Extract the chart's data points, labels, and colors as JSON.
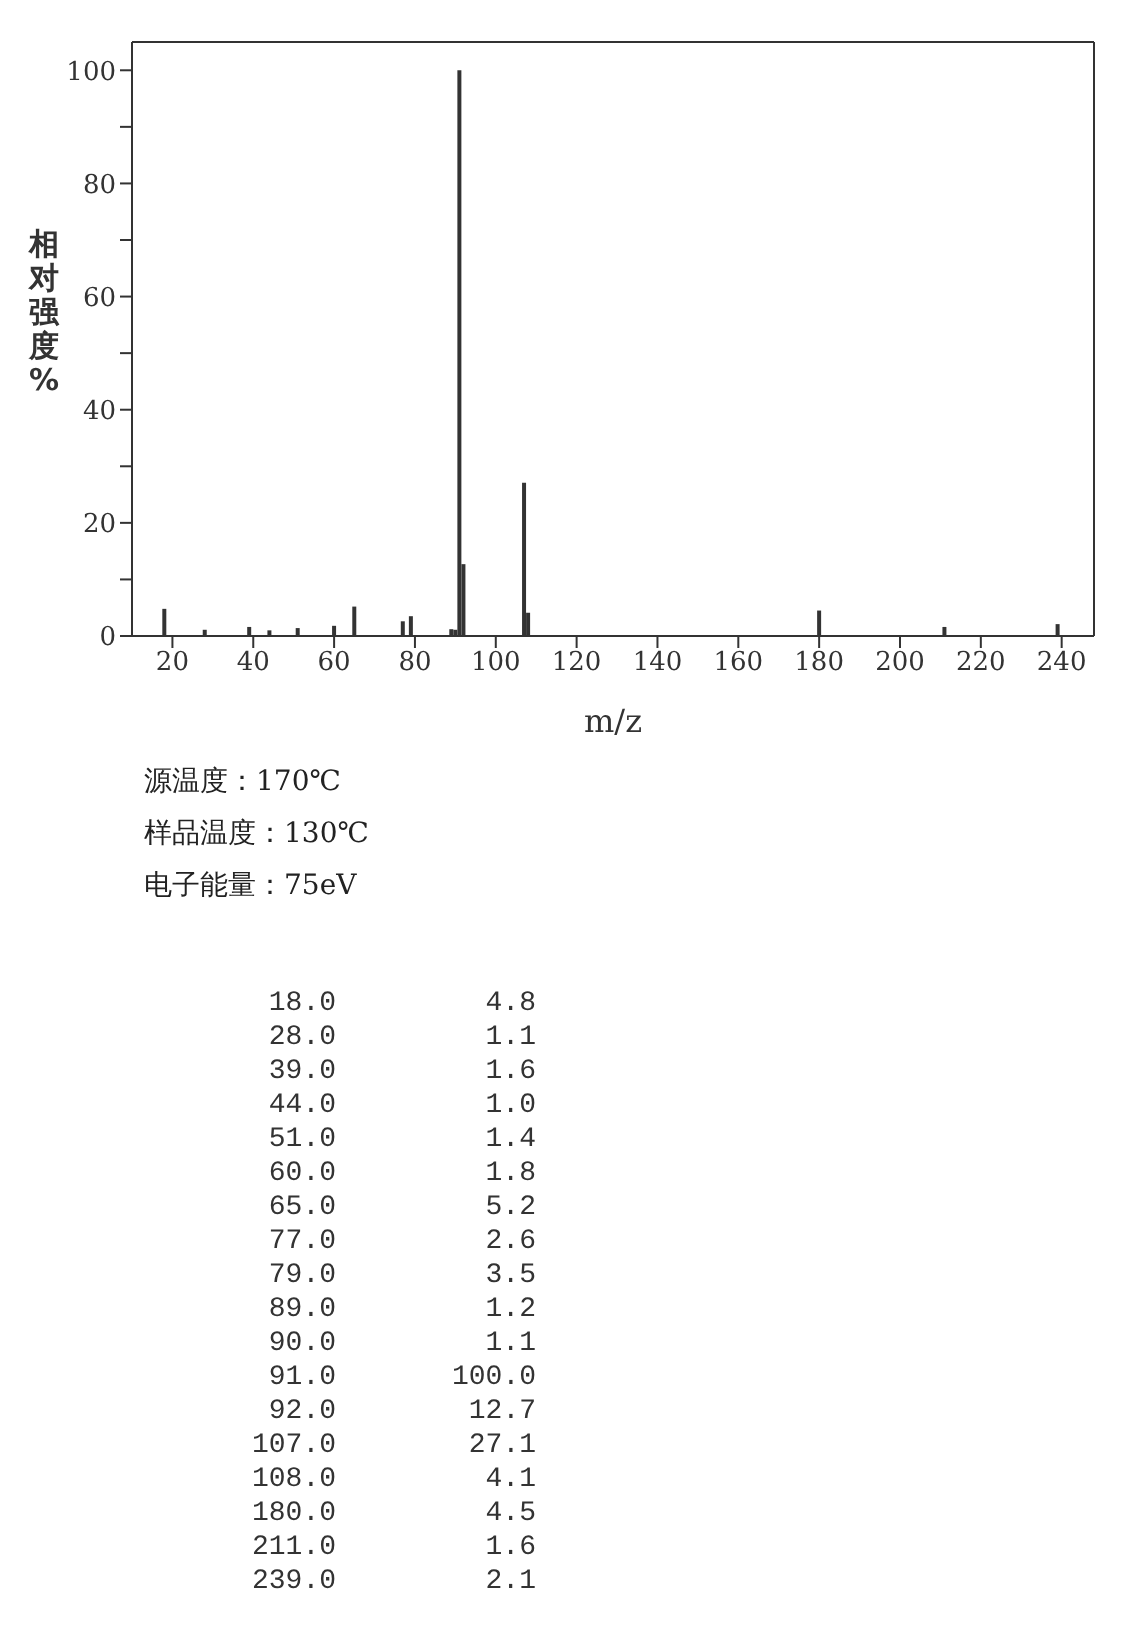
{
  "chart_data": [
    {
      "type": "bar",
      "xlabel": "m/z",
      "ylabel": "相对强度%",
      "x": [
        18,
        28,
        39,
        44,
        51,
        60,
        65,
        77,
        79,
        89,
        90,
        91,
        92,
        107,
        108,
        180,
        211,
        239
      ],
      "values": [
        4.8,
        1.1,
        1.6,
        1.0,
        1.4,
        1.8,
        5.2,
        2.6,
        3.5,
        1.2,
        1.1,
        100.0,
        12.7,
        27.1,
        4.1,
        4.5,
        1.6,
        2.1
      ],
      "color": "#333333",
      "xlim": [
        10,
        248
      ],
      "xticks": [
        20,
        40,
        60,
        80,
        100,
        120,
        140,
        160,
        180,
        200,
        220,
        240
      ],
      "ylim": [
        0,
        105
      ],
      "yticks": [
        0,
        {
          "value": 10,
          "label": null
        },
        20,
        {
          "value": 30,
          "label": null
        },
        40,
        {
          "value": 50,
          "label": null
        },
        60,
        {
          "value": 70,
          "label": null
        },
        80,
        {
          "value": 90,
          "label": null
        },
        100
      ],
      "annotations": [
        "源温度：170℃",
        "样品温度：130℃",
        "电子能量：75eV"
      ]
    },
    {
      "type": "other",
      "annotations": [
        "18.0",
        "4.8",
        "28.0",
        "1.1",
        "39.0",
        "1.6",
        "44.0",
        "1.0",
        "51.0",
        "1.4",
        "60.0",
        "1.8",
        "65.0",
        "5.2",
        "77.0",
        "2.6",
        "79.0",
        "3.5",
        "89.0",
        "1.2",
        "90.0",
        "1.1",
        "91.0",
        "100.0",
        "92.0",
        "12.7",
        "107.0",
        "27.1",
        "108.0",
        "4.1",
        "180.0",
        "4.5",
        "211.0",
        "1.6",
        "239.0",
        "2.1"
      ]
    }
  ]
}
